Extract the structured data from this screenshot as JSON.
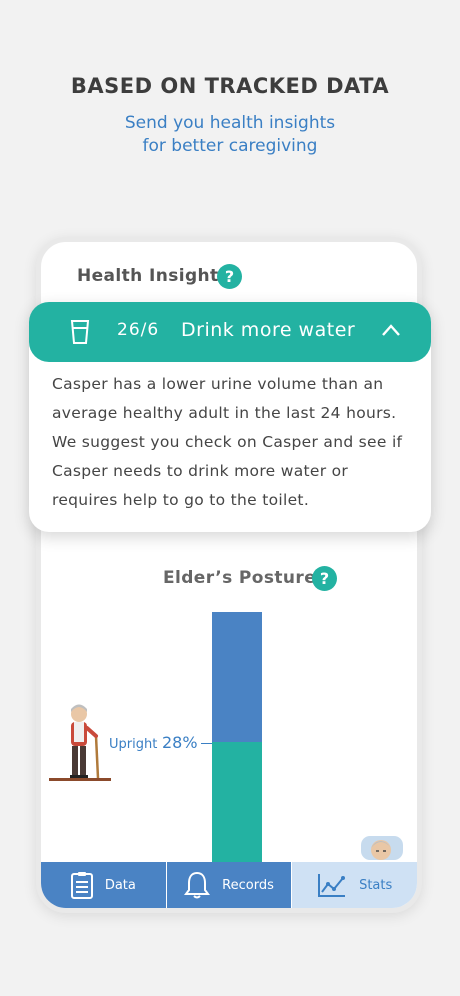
{
  "header": {
    "headline": "BASED ON TRACKED DATA",
    "subline_1": "Send you health insights",
    "subline_2": "for better caregiving"
  },
  "health_insight": {
    "title": "Health Insight",
    "help_symbol": "?"
  },
  "insight_card": {
    "icon": "water-glass-icon",
    "date": "26/6",
    "title": "Drink more water",
    "expanded_icon": "chevron-up-icon",
    "body": "Casper has a lower urine volume than an average healthy adult in the last 24 hours. We suggest you check on Casper and see if Casper needs to drink more water or requires help to go to the toilet."
  },
  "posture": {
    "title": "Elder’s Posture",
    "help_symbol": "?",
    "upright_label": "Upright",
    "upright_value": "28%",
    "upright_fraction": 0.28
  },
  "tabbar": {
    "tabs": [
      {
        "label": "Data",
        "icon": "clipboard-icon",
        "active": false
      },
      {
        "label": "Records",
        "icon": "bell-icon",
        "active": false
      },
      {
        "label": "Stats",
        "icon": "line-chart-icon",
        "active": true
      }
    ]
  },
  "colors": {
    "teal": "#23b2a2",
    "blue": "#4a83c4",
    "active_tab": "#cfe1f4",
    "text_blue": "#3a7fc4"
  }
}
